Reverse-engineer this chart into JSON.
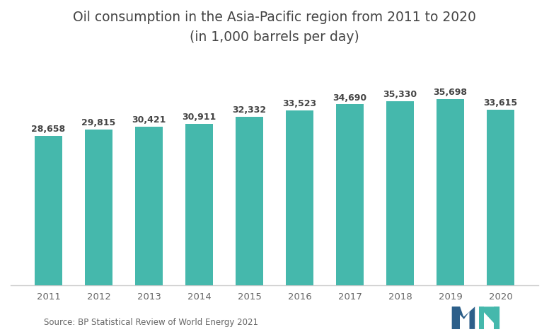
{
  "title_line1": "Oil consumption in the Asia-Pacific region from 2011 to 2020",
  "title_line2": "(in 1,000 barrels per day)",
  "categories": [
    "2011",
    "2012",
    "2013",
    "2014",
    "2015",
    "2016",
    "2017",
    "2018",
    "2019",
    "2020"
  ],
  "values": [
    28658,
    29815,
    30421,
    30911,
    32332,
    33523,
    34690,
    35330,
    35698,
    33615
  ],
  "labels": [
    "28,658",
    "29,815",
    "30,421",
    "30,911",
    "32,332",
    "33,523",
    "34,690",
    "35,330",
    "35,698",
    "33,615"
  ],
  "bar_color": "#45b8ac",
  "background_color": "#ffffff",
  "label_color": "#444444",
  "axis_color": "#cccccc",
  "tick_color": "#666666",
  "source_text": "Source: BP Statistical Review of World Energy 2021",
  "title_fontsize": 13.5,
  "label_fontsize": 9,
  "source_fontsize": 8.5,
  "ylim": [
    0,
    44000
  ],
  "bar_width": 0.55
}
